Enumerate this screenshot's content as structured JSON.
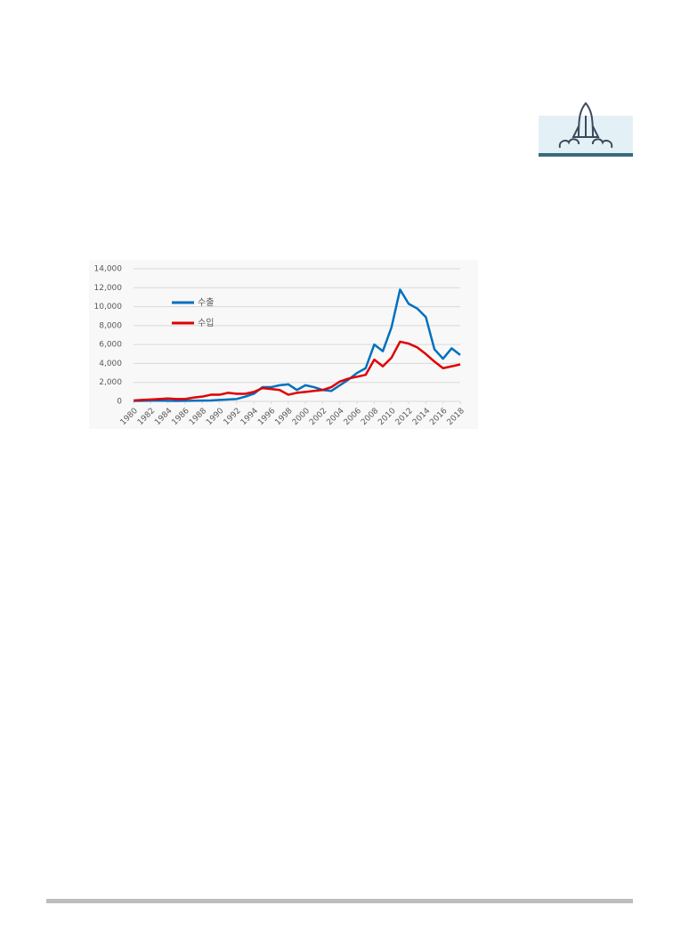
{
  "chart_data": {
    "type": "line",
    "x": [
      1980,
      1981,
      1982,
      1983,
      1984,
      1985,
      1986,
      1987,
      1988,
      1989,
      1990,
      1991,
      1992,
      1993,
      1994,
      1995,
      1996,
      1997,
      1998,
      1999,
      2000,
      2001,
      2002,
      2003,
      2004,
      2005,
      2006,
      2007,
      2008,
      2009,
      2010,
      2011,
      2012,
      2013,
      2014,
      2015,
      2016,
      2017,
      2018
    ],
    "xlim": [
      1980,
      2018
    ],
    "xticks": [
      1980,
      1982,
      1984,
      1986,
      1988,
      1990,
      1992,
      1994,
      1996,
      1998,
      2000,
      2002,
      2004,
      2006,
      2008,
      2010,
      2012,
      2014,
      2016,
      2018
    ],
    "ylim": [
      0,
      14000
    ],
    "yticks": [
      0,
      {
        "value": 2000,
        "label": "2,000"
      },
      {
        "value": 4000,
        "label": "4,000"
      },
      {
        "value": 6000,
        "label": "6,000"
      },
      {
        "value": 8000,
        "label": "8,000"
      },
      {
        "value": 10000,
        "label": "10,000"
      },
      {
        "value": 12000,
        "label": "12,000"
      },
      {
        "value": 14000,
        "label": "14,000"
      }
    ],
    "grid": true,
    "legend": "upper-left",
    "series": [
      {
        "name": "수출",
        "color": "#0070c0",
        "values": [
          50,
          60,
          70,
          80,
          60,
          50,
          60,
          70,
          80,
          90,
          150,
          200,
          250,
          500,
          800,
          1500,
          1500,
          1700,
          1800,
          1200,
          1700,
          1500,
          1200,
          1100,
          1700,
          2300,
          3000,
          3500,
          6000,
          5300,
          7800,
          11800,
          10300,
          9800,
          8900,
          5500,
          4500,
          5600,
          4900
        ]
      },
      {
        "name": "수입",
        "color": "#e00000",
        "values": [
          100,
          150,
          200,
          250,
          300,
          250,
          250,
          400,
          500,
          700,
          700,
          900,
          800,
          800,
          1000,
          1400,
          1300,
          1200,
          700,
          900,
          1000,
          1100,
          1200,
          1500,
          2100,
          2400,
          2600,
          2800,
          4400,
          3700,
          4600,
          6300,
          6100,
          5700,
          5000,
          4200,
          3500,
          3700,
          3900
        ]
      }
    ]
  }
}
